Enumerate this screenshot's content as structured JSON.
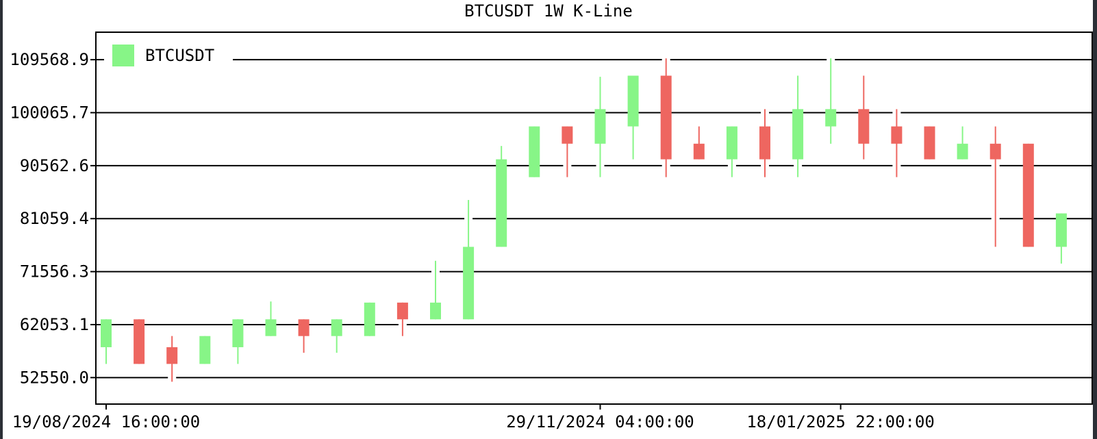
{
  "chart_data": {
    "type": "candlestick",
    "title": "BTCUSDT 1W K-Line",
    "legend": {
      "label": "BTCUSDT",
      "position": "top-left",
      "color": "#87f587"
    },
    "colors": {
      "up": "#87f587",
      "down": "#ee6660",
      "axis": "#000000",
      "grid": "#000000"
    },
    "grid": true,
    "ylim": [
      47800,
      114500
    ],
    "y_ticks": [
      {
        "value": 52550.0,
        "label": "52550.0"
      },
      {
        "value": 62053.1,
        "label": "62053.1"
      },
      {
        "value": 71556.3,
        "label": "71556.3"
      },
      {
        "value": 81059.4,
        "label": "81059.4"
      },
      {
        "value": 90562.6,
        "label": "90562.6"
      },
      {
        "value": 100065.7,
        "label": "100065.7"
      },
      {
        "value": 109568.9,
        "label": "109568.9"
      }
    ],
    "x_ticks": [
      {
        "index": 0,
        "label": "19/08/2024 16:00:00"
      },
      {
        "index": 15,
        "label": "29/11/2024 04:00:00"
      },
      {
        "index": 22.3,
        "label": "18/01/2025 22:00:00"
      }
    ],
    "candles": [
      {
        "o": 58000,
        "h": 63000,
        "l": 55000,
        "c": 63000
      },
      {
        "o": 63000,
        "h": 63000,
        "l": 55000,
        "c": 55000
      },
      {
        "o": 58000,
        "h": 60000,
        "l": 51800,
        "c": 55000
      },
      {
        "o": 55000,
        "h": 60000,
        "l": 55000,
        "c": 60000
      },
      {
        "o": 58000,
        "h": 63000,
        "l": 55000,
        "c": 63000
      },
      {
        "o": 60000,
        "h": 66200,
        "l": 60000,
        "c": 63000
      },
      {
        "o": 63000,
        "h": 63000,
        "l": 57000,
        "c": 60000
      },
      {
        "o": 60000,
        "h": 63000,
        "l": 57000,
        "c": 63000
      },
      {
        "o": 60000,
        "h": 66000,
        "l": 60000,
        "c": 66000
      },
      {
        "o": 66000,
        "h": 66000,
        "l": 60000,
        "c": 63000
      },
      {
        "o": 63000,
        "h": 73500,
        "l": 63000,
        "c": 66000
      },
      {
        "o": 63000,
        "h": 84400,
        "l": 63000,
        "c": 76000
      },
      {
        "o": 76000,
        "h": 94100,
        "l": 76000,
        "c": 91700
      },
      {
        "o": 88500,
        "h": 97600,
        "l": 88500,
        "c": 97600
      },
      {
        "o": 97600,
        "h": 97600,
        "l": 88500,
        "c": 94500
      },
      {
        "o": 94500,
        "h": 106500,
        "l": 88500,
        "c": 100700
      },
      {
        "o": 97600,
        "h": 106700,
        "l": 91700,
        "c": 106700
      },
      {
        "o": 106700,
        "h": 109800,
        "l": 88500,
        "c": 91700
      },
      {
        "o": 94500,
        "h": 97600,
        "l": 91700,
        "c": 91700
      },
      {
        "o": 91700,
        "h": 97600,
        "l": 88500,
        "c": 97600
      },
      {
        "o": 97600,
        "h": 100700,
        "l": 88500,
        "c": 91700
      },
      {
        "o": 91700,
        "h": 106700,
        "l": 88500,
        "c": 100700
      },
      {
        "o": 97600,
        "h": 109800,
        "l": 94500,
        "c": 100700
      },
      {
        "o": 100700,
        "h": 106700,
        "l": 91700,
        "c": 94500
      },
      {
        "o": 97600,
        "h": 100700,
        "l": 88500,
        "c": 94500
      },
      {
        "o": 97600,
        "h": 97600,
        "l": 91700,
        "c": 91700
      },
      {
        "o": 91700,
        "h": 97600,
        "l": 91700,
        "c": 94500
      },
      {
        "o": 94500,
        "h": 97600,
        "l": 76000,
        "c": 91700
      },
      {
        "o": 94500,
        "h": 94500,
        "l": 76000,
        "c": 76000
      },
      {
        "o": 76000,
        "h": 82000,
        "l": 73000,
        "c": 82000
      }
    ]
  }
}
